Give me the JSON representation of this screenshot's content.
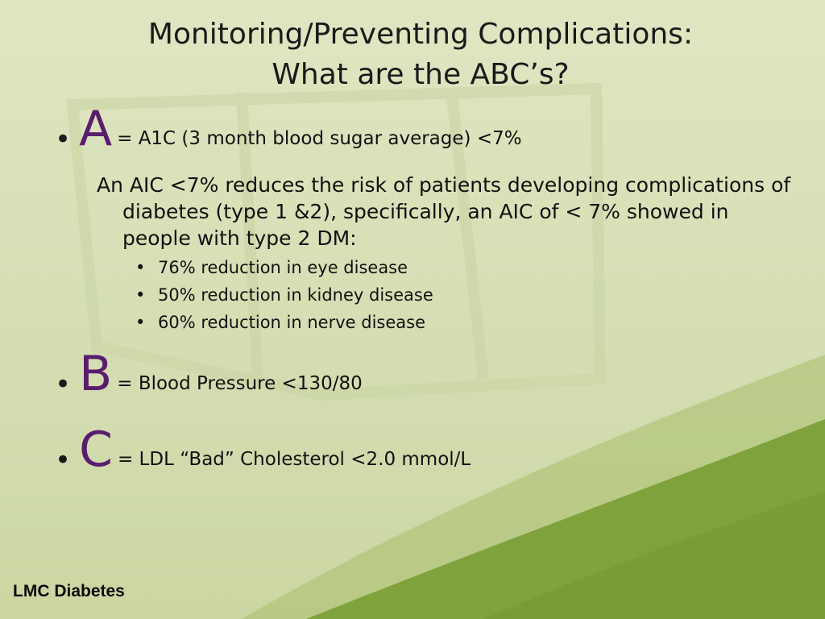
{
  "title": {
    "line1": "Monitoring/Preventing Complications:",
    "line2": "What are the ABC’s?"
  },
  "items": [
    {
      "letter": "A",
      "definition": "= A1C (3 month blood sugar average) <7%",
      "paragraph": "An AIC <7% reduces the risk of patients developing complications of diabetes (type 1 &2), specifically, an AIC of < 7% showed in people with type 2 DM:",
      "subpoints": [
        "76% reduction in eye disease",
        "50% reduction in kidney disease",
        "60% reduction in nerve disease"
      ]
    },
    {
      "letter": "B",
      "definition": "= Blood Pressure <130/80"
    },
    {
      "letter": "C",
      "definition": "= LDL “Bad” Cholesterol <2.0 mmol/L"
    }
  ],
  "bullet_glyph": "•",
  "footer": "LMC Diabetes",
  "colors": {
    "background": "#d4ddb1",
    "letter": "#5a1d6e",
    "swoosh": "#7fa23c"
  }
}
